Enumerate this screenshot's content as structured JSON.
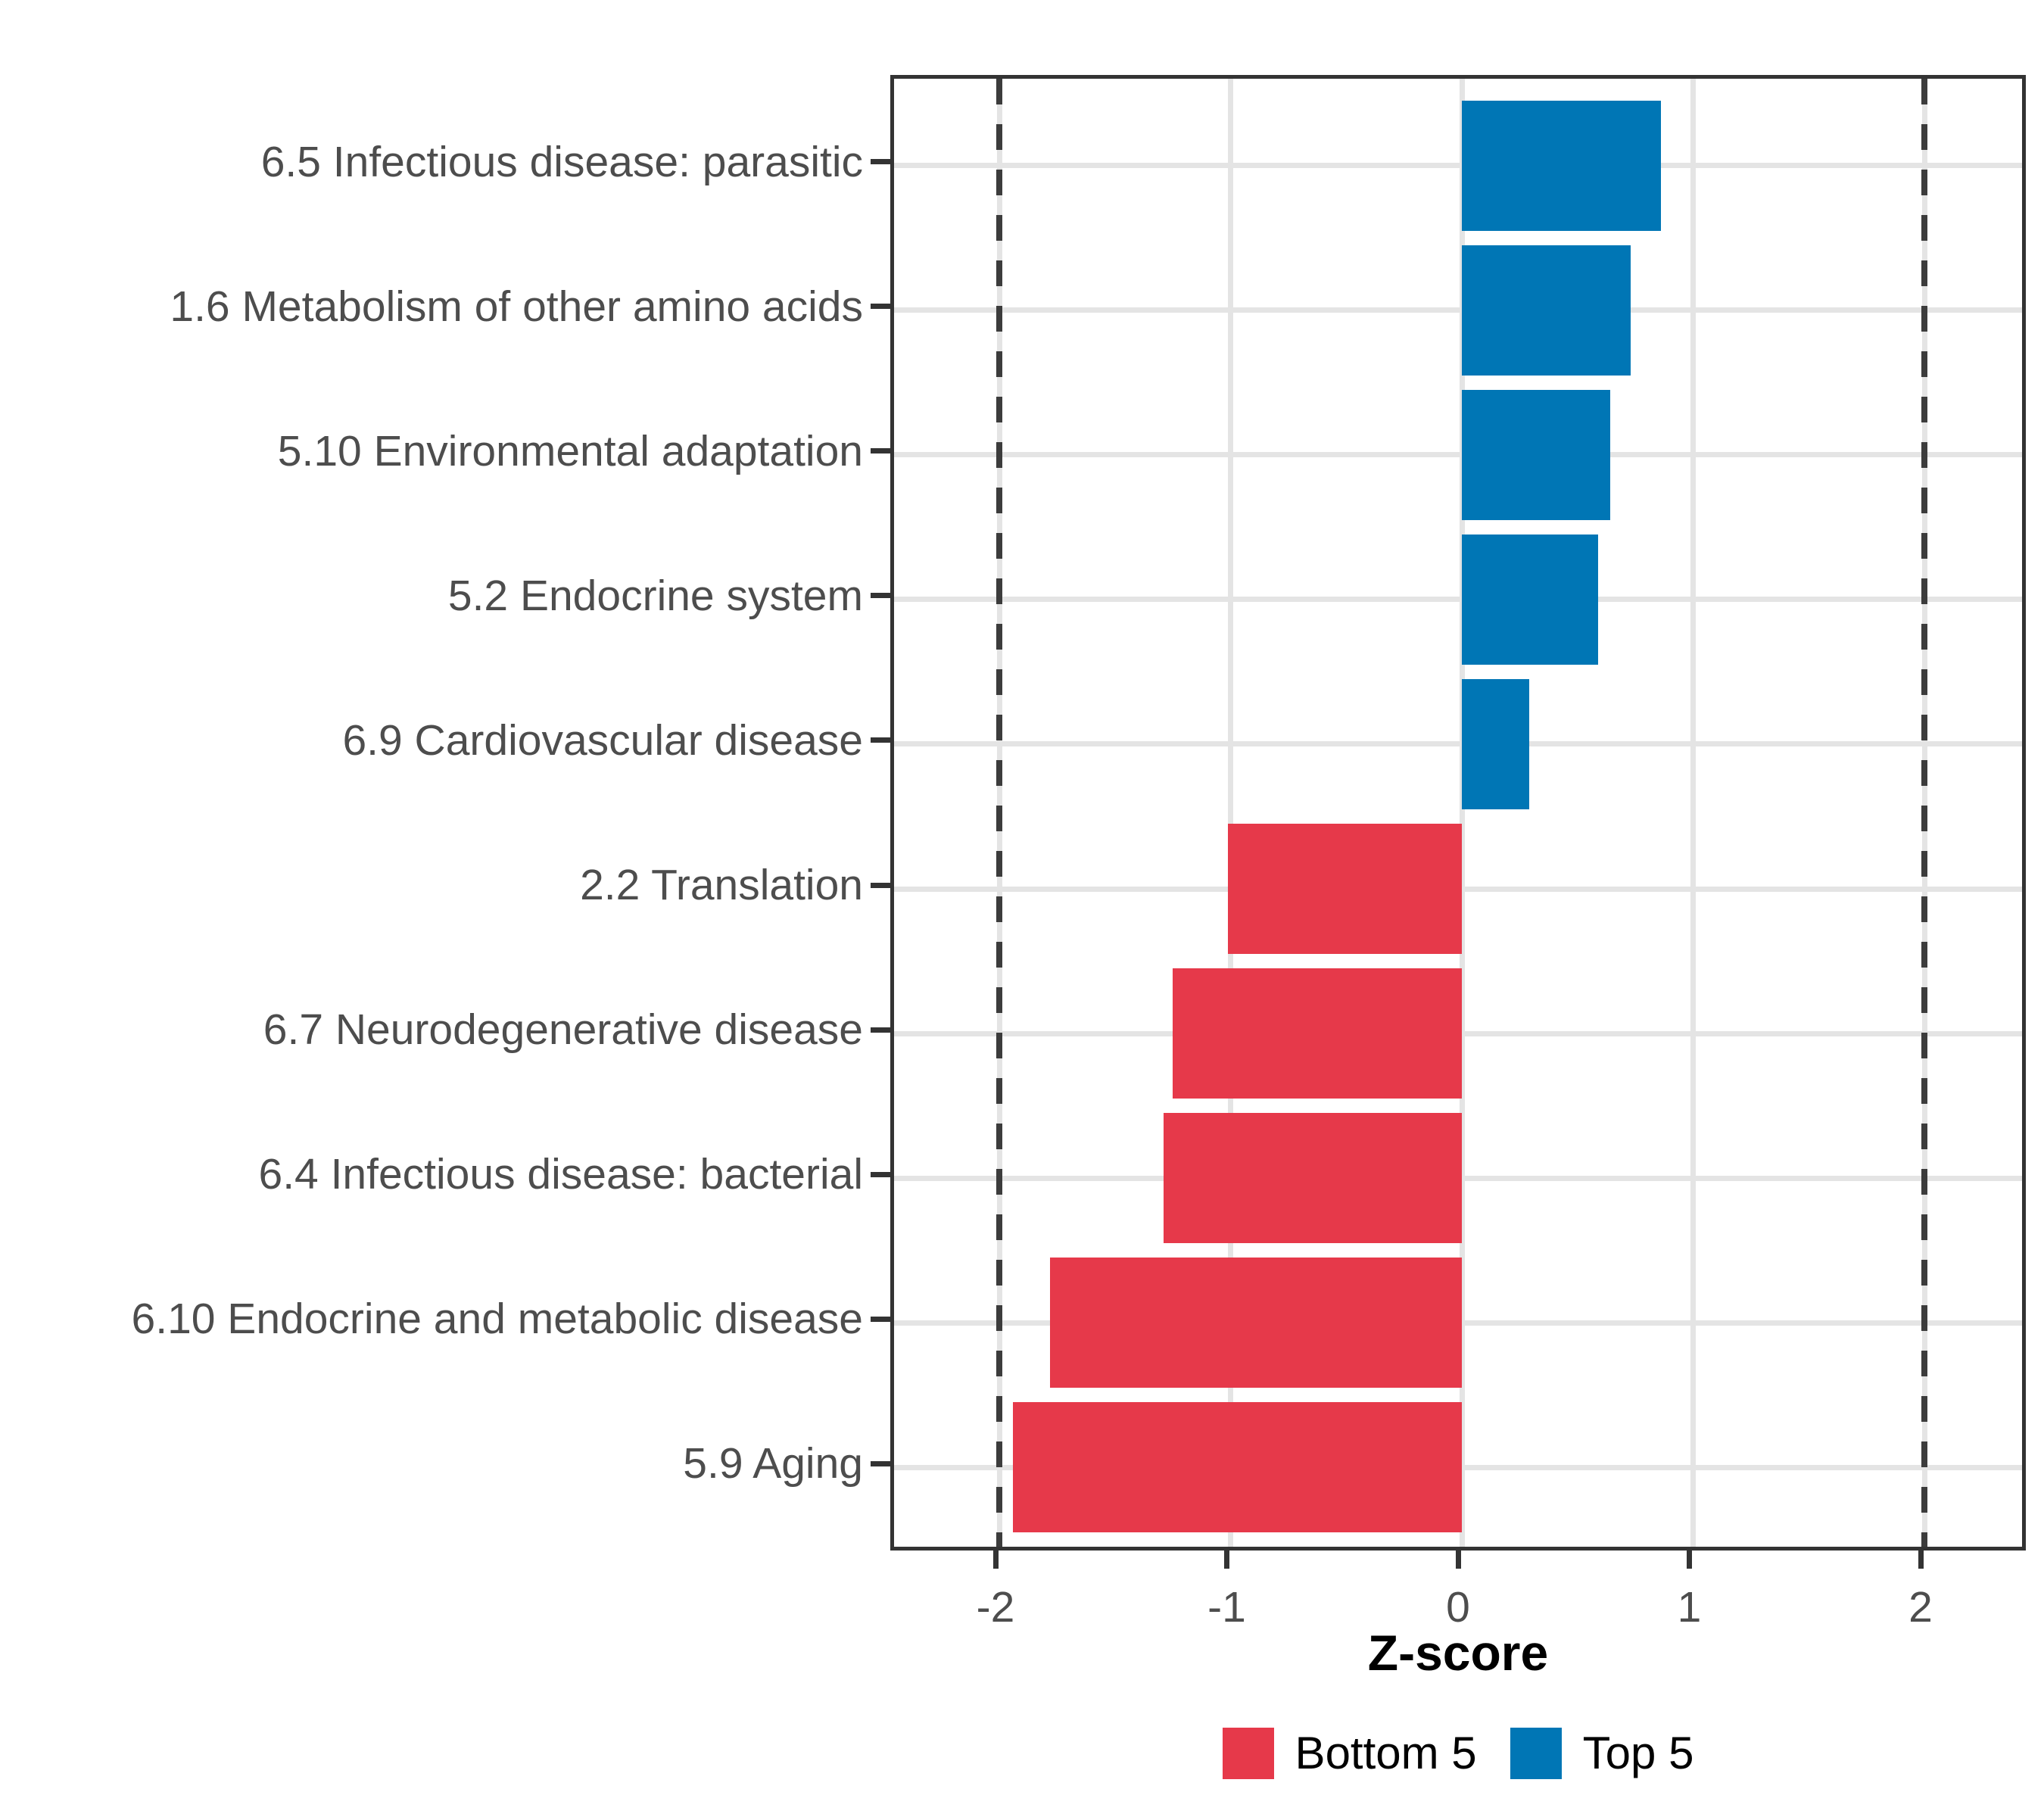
{
  "chart_data": {
    "type": "bar",
    "orientation": "horizontal",
    "categories": [
      "6.5 Infectious disease: parasitic",
      "1.6 Metabolism of other amino acids",
      "5.10 Environmental adaptation",
      "5.2 Endocrine system",
      "6.9 Cardiovascular disease",
      "2.2 Translation",
      "6.7 Neurodegenerative disease",
      "6.4 Infectious disease: bacterial",
      "6.10 Endocrine and metabolic disease",
      "5.9 Aging"
    ],
    "values": [
      0.86,
      0.73,
      0.64,
      0.59,
      0.29,
      -1.01,
      -1.25,
      -1.29,
      -1.78,
      -1.94
    ],
    "series_of_bar": [
      "Top 5",
      "Top 5",
      "Top 5",
      "Top 5",
      "Top 5",
      "Bottom 5",
      "Bottom 5",
      "Bottom 5",
      "Bottom 5",
      "Bottom 5"
    ],
    "xlabel": "Z-score",
    "x_tick_labels": [
      "-2",
      "-1",
      "0",
      "1",
      "2"
    ],
    "x_tick_values": [
      -2,
      -1,
      0,
      1,
      2
    ],
    "xlim": [
      -2.45,
      2.45
    ],
    "reference_lines": [
      -2,
      2
    ],
    "grid": true,
    "legend_position": "bottom"
  },
  "legend": {
    "items": [
      {
        "label": "Bottom 5",
        "color": "#E6394A"
      },
      {
        "label": "Top 5",
        "color": "#0076B5"
      }
    ]
  },
  "colors": {
    "bottom5": "#E6394A",
    "top5": "#0076B5",
    "gridline": "#E4E4E4",
    "reference_line": "#3C3C3C",
    "axis_text": "#4D4D4D",
    "panel_border": "#333333"
  }
}
